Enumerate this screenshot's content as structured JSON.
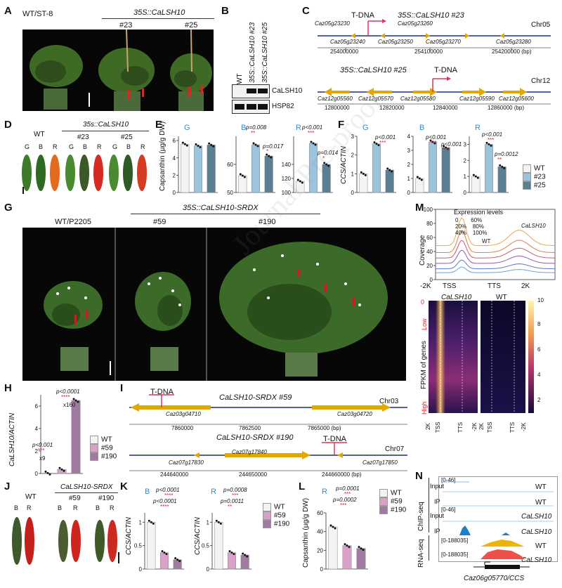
{
  "panels": {
    "A": "A",
    "B": "B",
    "C": "C",
    "D": "D",
    "E": "E",
    "F": "F",
    "G": "G",
    "H": "H",
    "I": "I",
    "J": "J",
    "K": "K",
    "L": "L",
    "M": "M",
    "N": "N"
  },
  "panelA": {
    "wt": "WT/ST-8",
    "construct": "35S::CaLSH10",
    "line1": "#23",
    "line2": "#25"
  },
  "panelB": {
    "col1": "WT",
    "col2": "35S::CaLSH10 #23",
    "col3": "35S::CaLSH10 #25",
    "band1": "CaLSH10",
    "band2": "HSP82"
  },
  "panelC": {
    "title1": "35S::CaLSH10 #23",
    "chr1": "Chr05",
    "tdna": "T-DNA",
    "genes1": [
      "Caz05g23230",
      "Caz05g23240",
      "Caz05g23250",
      "Caz05g23260",
      "Caz05g23270",
      "Caz05g23280"
    ],
    "ticks1": [
      "254000000",
      "254100000",
      "254200000 (bp)"
    ],
    "title2": "35S::CaLSH10 #25",
    "chr2": "Chr12",
    "genes2": [
      "Caz12g05560",
      "Caz12g05570",
      "Caz12g05580",
      "Caz12g05590",
      "Caz12g05600"
    ],
    "ticks2": [
      "12800000",
      "12820000",
      "12840000",
      "12860000 (bp)"
    ]
  },
  "panelD": {
    "construct": "35s::CaLSH10",
    "groups": [
      "WT",
      "#23",
      "#25"
    ],
    "stages": [
      "G",
      "B",
      "R"
    ]
  },
  "panelE": {
    "ylabel": "Capsanthin (µg/g DW)",
    "g": "G",
    "b": "B",
    "r": "R",
    "pb1": "p=0.008",
    "pb2": "p=0.017",
    "pr1": "p<0.001",
    "pr2": "p=0.014",
    "stars2": "**",
    "stars3": "***",
    "stars1": "*"
  },
  "panelF": {
    "ylabel": "CCS/ACTIN",
    "g": "G",
    "b": "B",
    "r": "R",
    "p1": "p<0.001",
    "p2": "p<0.001",
    "p3": "p<0.001",
    "p4": "p<0.001",
    "p5": "p=0.0012",
    "stars": "***",
    "stars2": "**",
    "legend": [
      "WT",
      "#23",
      "#25"
    ]
  },
  "panelG": {
    "wt": "WT/P2205",
    "construct": "35S::CaLSH10-SRDX",
    "line1": "#59",
    "line2": "#190"
  },
  "panelH": {
    "ylabel": "CaLSH10/ACTIN",
    "p1": "p<0.0001",
    "stars1": "****",
    "fold1": "x160",
    "p2": "p<0.001",
    "stars2": "***",
    "fold2": "x9",
    "legend": [
      "WT",
      "#59",
      "#190"
    ]
  },
  "panelI": {
    "title1": "CaLSH10-SRDX #59",
    "chr1": "Chr03",
    "tdna": "T-DNA",
    "genes1": [
      "Caz03g04710",
      "Caz03g04720"
    ],
    "ticks1": [
      "7860000",
      "7862500",
      "7865000 (bp)"
    ],
    "title2": "CaLSH10-SRDX #190",
    "chr2": "Chr07",
    "genes2": [
      "Caz07g17830",
      "Caz07g17840",
      "Caz07g17850"
    ],
    "ticks2": [
      "244640000",
      "244650000",
      "244660000 (bp)"
    ]
  },
  "panelJ": {
    "construct": "CaLSH10-SRDX",
    "groups": [
      "WT",
      "#59",
      "#190"
    ],
    "stages": [
      "B",
      "R"
    ]
  },
  "panelK": {
    "ylabel": "CCS/ACTIN",
    "b": "B",
    "r": "R",
    "pb1": "p<0.0001",
    "pb2": "p<0.0001",
    "pr1": "p=0.0008",
    "pr2": "p=0.0011",
    "s4": "****",
    "s3": "***",
    "s2": "**",
    "legend": [
      "WT",
      "#59",
      "#190"
    ]
  },
  "panelL": {
    "ylabel": "Capsanthin (µg/g DW)",
    "r": "R",
    "p1": "p=0.0001",
    "p2": "p=0.0002",
    "s3": "***",
    "legend": [
      "WT",
      "#59",
      "#190"
    ]
  },
  "panelM": {
    "ylabel": "Coverage",
    "legend_title": "Expression levels",
    "levels": [
      "0",
      "20%",
      "40%",
      "60%",
      "80%",
      "100%"
    ],
    "calsh10": "CaLSH10",
    "wt": "WT",
    "xticks": [
      "-2K",
      "TSS",
      "TTS",
      "2K"
    ],
    "yticks": [
      "0",
      "20",
      "40",
      "60",
      "80",
      "100"
    ],
    "heat_title1": "CaLSH10",
    "heat_title2": "WT",
    "heat_y": "FPKM of genes",
    "low": "Low",
    "high": "High",
    "zero": "0",
    "cbar": [
      "10",
      "8",
      "6",
      "4",
      "2"
    ],
    "heat_x": [
      "2K",
      "TSS",
      "TTS",
      "-2K",
      "2K",
      "TSS",
      "TTS",
      "-2K"
    ],
    "colors": {
      "top": "#d9a13a",
      "curves": [
        "#e8a84a",
        "#e07d52",
        "#c65a6e",
        "#8a5db0",
        "#5a78c8",
        "#6aa1d8"
      ]
    }
  },
  "panelN": {
    "chip": "ChIP-seq",
    "rna": "RNA-seq",
    "rows": [
      {
        "tag": "Input",
        "sample": "WT",
        "scale": "[0-46]"
      },
      {
        "tag": "IP",
        "sample": "WT",
        "scale": ""
      },
      {
        "tag": "Input",
        "sample": "CaLSH10",
        "scale": "[0-46]"
      },
      {
        "tag": "IP",
        "sample": "CaLSH10",
        "scale": ""
      },
      {
        "tag": "",
        "sample": "WT",
        "scale": "[0-188035]"
      },
      {
        "tag": "",
        "sample": "CaLSH10",
        "scale": "[0-188035]"
      }
    ],
    "gene": "Caz06g05770/CCS"
  },
  "watermark": "Journal Pre-proof",
  "chart_data": [
    {
      "type": "bar",
      "panel": "E",
      "title": "",
      "xlabel": "",
      "ylabel": "Capsanthin (µg/g DW)",
      "series": [
        {
          "name": "G",
          "values": [
            5.6,
            5.4,
            5.5
          ]
        },
        {
          "name": "B",
          "values": [
            56,
            67,
            63
          ]
        },
        {
          "name": "R",
          "values": [
            116,
            170,
            140
          ]
        }
      ],
      "categories": [
        "WT",
        "#23",
        "#25"
      ]
    },
    {
      "type": "bar",
      "panel": "F",
      "ylabel": "CCS/ACTIN",
      "categories": [
        "WT",
        "#23",
        "#25"
      ],
      "series": [
        {
          "name": "G",
          "values": [
            1.0,
            2.6,
            1.2
          ]
        },
        {
          "name": "B",
          "values": [
            1.0,
            3.6,
            3.2
          ]
        },
        {
          "name": "R",
          "values": [
            1.0,
            3.0,
            1.6
          ]
        }
      ]
    },
    {
      "type": "bar",
      "panel": "H",
      "ylabel": "CaLSH10/ACTIN",
      "categories": [
        "WT",
        "#59",
        "#190"
      ],
      "values": [
        0.04,
        0.36,
        6.5
      ]
    },
    {
      "type": "bar",
      "panel": "K",
      "ylabel": "CCS/ACTIN",
      "categories": [
        "WT",
        "#59",
        "#190"
      ],
      "series": [
        {
          "name": "B",
          "values": [
            1.0,
            0.35,
            0.2
          ]
        },
        {
          "name": "R",
          "values": [
            1.0,
            0.35,
            0.3
          ]
        }
      ]
    },
    {
      "type": "bar",
      "panel": "L",
      "ylabel": "Capsanthin (µg/g DW)",
      "categories": [
        "WT",
        "#59",
        "#190"
      ],
      "series": [
        {
          "name": "R",
          "values": [
            45,
            25,
            22
          ]
        }
      ]
    }
  ]
}
